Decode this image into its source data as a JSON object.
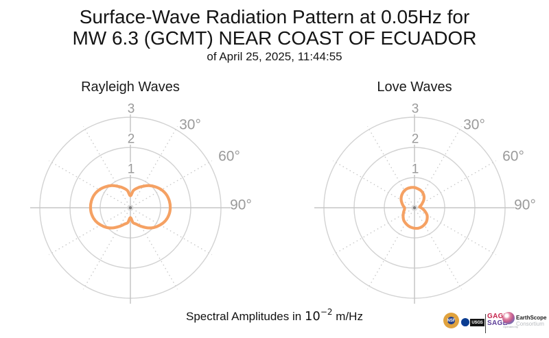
{
  "header": {
    "title_line1": "Surface-Wave Radiation Pattern at 0.05Hz for",
    "title_line2": "MW 6.3 (GCMT) NEAR COAST OF ECUADOR",
    "subtitle": "of April 25, 2025, 11:44:55"
  },
  "caption": {
    "prefix": "Spectral Amplitudes in",
    "base": "10",
    "exponent": "−2",
    "suffix": "m/Hz"
  },
  "footer_logos": {
    "nsf_label": "NSF",
    "usgs_label": "USGS",
    "gage_label": "GAGE",
    "sage_label": "SAGE",
    "gage_color": "#c5234b",
    "sage_color": "#5a3b97",
    "operated_by": "Operated by",
    "earthscope_name": "EarthScope",
    "earthscope_sub": "Consortium"
  },
  "chart_data": [
    {
      "type": "line",
      "subtype": "polar-radiation-pattern",
      "title": "Rayleigh Waves",
      "color": "#f5a163",
      "grid": true,
      "r_axis": {
        "ticks": [
          1,
          2,
          3
        ],
        "max": 3
      },
      "theta_axis": {
        "labels": [
          "30°",
          "60°",
          "90°"
        ],
        "label_angles_deg": [
          30,
          60,
          90
        ],
        "grid_deg": [
          30,
          60,
          120,
          150,
          210,
          240,
          300,
          330
        ]
      },
      "series": {
        "name": "rayleigh-spectral-amplitude",
        "theta_deg": [
          0,
          10,
          20,
          30,
          40,
          50,
          60,
          70,
          80,
          90,
          100,
          110,
          120,
          130,
          140,
          150,
          160,
          170,
          180,
          190,
          200,
          210,
          220,
          230,
          240,
          250,
          260,
          270,
          280,
          290,
          300,
          310,
          320,
          330,
          340,
          350
        ],
        "r": [
          0.4,
          0.58,
          0.7,
          0.82,
          0.96,
          1.08,
          1.19,
          1.27,
          1.31,
          1.32,
          1.3,
          1.24,
          1.14,
          1.02,
          0.87,
          0.71,
          0.58,
          0.5,
          0.33,
          0.5,
          0.58,
          0.71,
          0.87,
          1.02,
          1.14,
          1.24,
          1.3,
          1.32,
          1.31,
          1.27,
          1.19,
          1.08,
          0.96,
          0.82,
          0.7,
          0.58
        ]
      }
    },
    {
      "type": "line",
      "subtype": "polar-radiation-pattern",
      "title": "Love Waves",
      "color": "#f5a163",
      "grid": true,
      "r_axis": {
        "ticks": [
          1,
          2,
          3
        ],
        "max": 3
      },
      "theta_axis": {
        "labels": [
          "30°",
          "60°",
          "90°"
        ],
        "label_angles_deg": [
          30,
          60,
          90
        ],
        "grid_deg": [
          30,
          60,
          120,
          150,
          210,
          240,
          300,
          330
        ]
      },
      "series": {
        "name": "love-spectral-amplitude",
        "theta_deg": [
          0,
          10,
          20,
          30,
          40,
          50,
          60,
          70,
          80,
          90,
          100,
          110,
          120,
          130,
          140,
          150,
          160,
          170,
          180,
          190,
          200,
          210,
          220,
          230,
          240,
          250,
          260,
          270,
          280,
          290,
          300,
          310,
          320,
          330,
          340,
          350
        ],
        "r": [
          0.67,
          0.64,
          0.61,
          0.56,
          0.49,
          0.4,
          0.3,
          0.23,
          0.17,
          0.22,
          0.29,
          0.38,
          0.48,
          0.55,
          0.61,
          0.65,
          0.68,
          0.69,
          0.68,
          0.66,
          0.63,
          0.59,
          0.55,
          0.49,
          0.43,
          0.38,
          0.34,
          0.33,
          0.38,
          0.44,
          0.51,
          0.57,
          0.62,
          0.66,
          0.68,
          0.68
        ]
      }
    }
  ]
}
